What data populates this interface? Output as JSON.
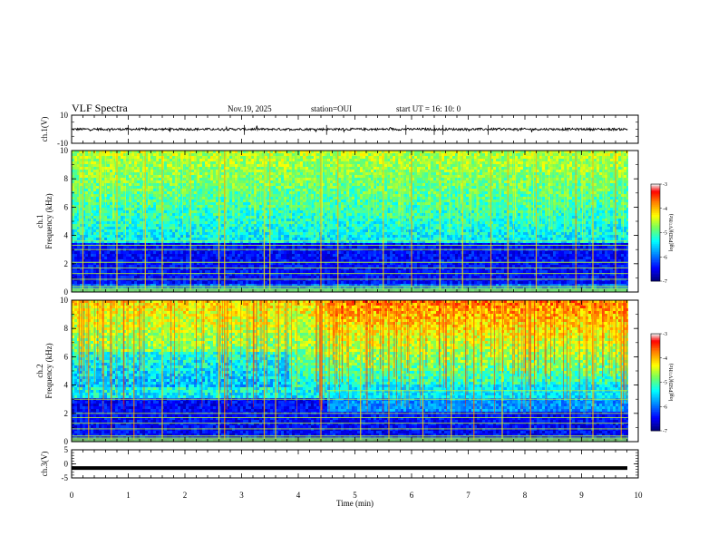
{
  "header": {
    "title": "VLF Spectra",
    "date": "Nov.19, 2025",
    "station": "station=OUI",
    "start": "start  UT  =   16: 10: 0"
  },
  "colors": {
    "spectrogram_scale": [
      "#00007a",
      "#0000ff",
      "#00a0ff",
      "#00ffff",
      "#7cff5a",
      "#ffff00",
      "#ff8000",
      "#ff0000",
      "#f0e0e0"
    ],
    "waveform": "#000000"
  },
  "chart_data": [
    {
      "type": "line",
      "name": "ch1-waveform",
      "ylabel": "ch.1(V)",
      "ylim": [
        -10,
        10
      ],
      "yticks": [
        "10",
        "-10"
      ],
      "approx_level": 0,
      "x": [
        0,
        10
      ]
    },
    {
      "type": "heatmap",
      "name": "ch1-spectrogram",
      "ylabel": "ch.1\nFrequency (kHz)",
      "ylim": [
        0,
        10
      ],
      "yticks": [
        "0",
        "2",
        "4",
        "6",
        "8",
        "10"
      ],
      "colorbar": {
        "label": "log(PSD)(V²/Hz)",
        "ticks": [
          "-3",
          "-4",
          "-5",
          "-6",
          "-7"
        ],
        "range": [
          -7,
          -3
        ]
      },
      "features": {
        "low_band_khz": [
          0,
          3.6
        ],
        "narrowband_lines_khz": [
          0.4,
          0.9,
          1.3,
          1.7,
          2.1,
          3.0,
          3.3,
          3.6
        ],
        "sferics_min": [
          0.2,
          0.5,
          0.8,
          1.3,
          1.6,
          2.1,
          2.6,
          2.7,
          3.4,
          3.5,
          4.4,
          4.7,
          5.5,
          6.0,
          6.5,
          6.9,
          7.4,
          7.7,
          8.2,
          8.9,
          9.2,
          9.6
        ]
      }
    },
    {
      "type": "heatmap",
      "name": "ch2-spectrogram",
      "ylabel": "ch.2\nFrequency (kHz)",
      "ylim": [
        0,
        10
      ],
      "yticks": [
        "0",
        "2",
        "4",
        "6",
        "8",
        "10"
      ],
      "colorbar": {
        "label": "log(PSD)(V²/Hz)",
        "ticks": [
          "-3",
          "-4",
          "-5",
          "-6",
          "-7"
        ],
        "range": [
          -7,
          -3
        ]
      },
      "features": {
        "emission_band_start_min": 4.5,
        "emission_band_khz": 3.6,
        "narrowband_lines_khz": [
          0.4,
          0.9,
          1.3,
          1.7,
          2.0,
          3.0,
          3.6
        ],
        "sferics_min": [
          0.3,
          0.7,
          1.1,
          1.6,
          2.6,
          2.7,
          3.4,
          3.6,
          4.4,
          5.1,
          5.6,
          6.2,
          6.7,
          7.1,
          7.6,
          8.1,
          8.8,
          9.2,
          9.7
        ]
      }
    },
    {
      "type": "line",
      "name": "ch3-waveform",
      "ylabel": "ch.3(V)",
      "ylim": [
        -5,
        5
      ],
      "yticks": [
        "5",
        "0",
        "-5"
      ],
      "level": -1.5,
      "x": [
        0,
        10
      ]
    }
  ],
  "xaxis": {
    "label": "Time (min)",
    "ticks": [
      "0",
      "1",
      "2",
      "3",
      "4",
      "5",
      "6",
      "7",
      "8",
      "9",
      "10"
    ],
    "range": [
      0,
      10
    ],
    "data_end": 9.82
  }
}
